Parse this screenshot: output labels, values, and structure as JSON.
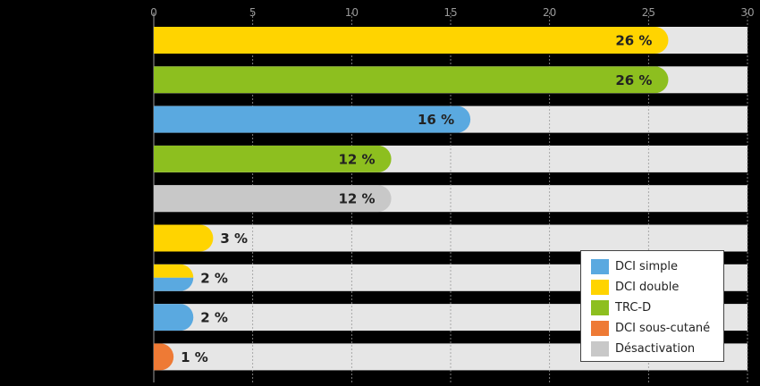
{
  "chart_data": {
    "type": "bar",
    "orientation": "horizontal",
    "xlim": [
      0,
      30
    ],
    "xticks": [
      "0",
      "5",
      "10",
      "15",
      "20",
      "25",
      "30"
    ],
    "grid": true,
    "legend_position": "bottom-right",
    "bars": [
      {
        "value": 26,
        "label": "26 %",
        "colors": [
          "#ffd400"
        ]
      },
      {
        "value": 26,
        "label": "26 %",
        "colors": [
          "#8dbf1f"
        ]
      },
      {
        "value": 16,
        "label": "16 %",
        "colors": [
          "#5aa9e0"
        ]
      },
      {
        "value": 12,
        "label": "12 %",
        "colors": [
          "#8dbf1f"
        ]
      },
      {
        "value": 12,
        "label": "12 %",
        "colors": [
          "#c8c8c8"
        ]
      },
      {
        "value": 3,
        "label": "3 %",
        "colors": [
          "#ffd400"
        ]
      },
      {
        "value": 2,
        "label": "2 %",
        "colors": [
          "#ffd400",
          "#5aa9e0"
        ]
      },
      {
        "value": 2,
        "label": "2 %",
        "colors": [
          "#5aa9e0"
        ]
      },
      {
        "value": 1,
        "label": "1 %",
        "colors": [
          "#ee7a35"
        ]
      }
    ],
    "legend": [
      {
        "name": "DCI simple",
        "color": "#5aa9e0"
      },
      {
        "name": "DCI double",
        "color": "#ffd400"
      },
      {
        "name": "TRC-D",
        "color": "#8dbf1f"
      },
      {
        "name": "DCI sous-cutané",
        "color": "#ee7a35"
      },
      {
        "name": "Désactivation",
        "color": "#c8c8c8"
      }
    ],
    "track_color": "#e6e6e6"
  }
}
